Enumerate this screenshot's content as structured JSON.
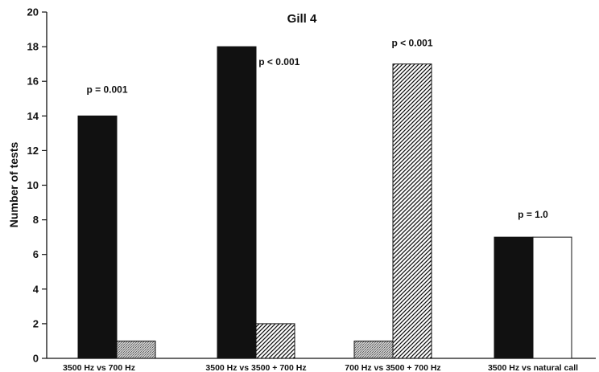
{
  "chart_data": {
    "type": "bar",
    "title": "Gill 4",
    "xlabel": "",
    "ylabel": "Number of tests",
    "ylim": [
      0,
      20
    ],
    "yticks": [
      0,
      2,
      4,
      6,
      8,
      10,
      12,
      14,
      16,
      18,
      20
    ],
    "grid": false,
    "groups": [
      {
        "label": "3500 Hz vs 700 Hz",
        "annotation": "p = 0.001",
        "bars": [
          {
            "value": 14,
            "fill": "solid-black"
          },
          {
            "value": 1,
            "fill": "light-gray-stipple"
          }
        ]
      },
      {
        "label": "3500 Hz vs 3500 + 700 Hz",
        "annotation": "p < 0.001",
        "bars": [
          {
            "value": 18,
            "fill": "solid-black"
          },
          {
            "value": 2,
            "fill": "diagonal-hatch"
          }
        ]
      },
      {
        "label": "700 Hz vs 3500 + 700 Hz",
        "annotation": "p < 0.001",
        "bars": [
          {
            "value": 1,
            "fill": "light-gray-stipple"
          },
          {
            "value": 17,
            "fill": "diagonal-hatch"
          }
        ]
      },
      {
        "label": "3500 Hz vs natural call",
        "annotation": "p = 1.0",
        "bars": [
          {
            "value": 7,
            "fill": "solid-black"
          },
          {
            "value": 7,
            "fill": "white"
          }
        ]
      }
    ]
  }
}
